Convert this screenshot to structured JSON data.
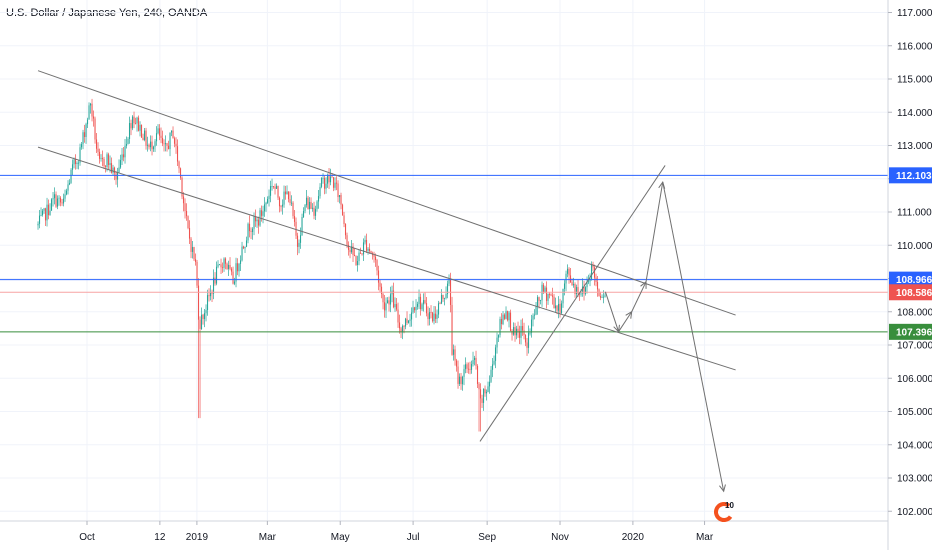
{
  "header": {
    "title": "U.S. Dollar / Japanese Yen, 240, OANDA"
  },
  "colors": {
    "up": "#26a69a",
    "down": "#ef5350",
    "blue_line": "#2962ff",
    "green_line": "#388e3c",
    "red_line": "#f7a3a3",
    "trend": "#707070",
    "tag_blue": "#2962ff",
    "tag_red": "#ef5350",
    "tag_green": "#388e3c",
    "logo": "#f4511e"
  },
  "logo": {
    "text": "10",
    "icon": "tradingview-logo-icon"
  },
  "chart_data": {
    "type": "candlestick",
    "title": "U.S. Dollar / Japanese Yen, 240, OANDA",
    "y_axis": {
      "position": "right",
      "ylim": [
        101.6,
        117.3
      ],
      "ticks": [
        "117.000",
        "116.000",
        "115.000",
        "114.000",
        "113.000",
        "112.000",
        "111.000",
        "110.000",
        "109.000",
        "108.000",
        "107.000",
        "106.000",
        "105.000",
        "104.000",
        "103.000",
        "102.000"
      ]
    },
    "x_axis": {
      "ticks": [
        "Oct",
        "12",
        "2019",
        "Mar",
        "May",
        "Jul",
        "Sep",
        "Nov",
        "2020",
        "Mar"
      ]
    },
    "series_close_path": [
      [
        "2018-08-21",
        110.6
      ],
      [
        "2018-08-28",
        111.0
      ],
      [
        "2018-09-04",
        111.4
      ],
      [
        "2018-09-11",
        111.2
      ],
      [
        "2018-09-18",
        112.2
      ],
      [
        "2018-09-25",
        112.8
      ],
      [
        "2018-10-04",
        114.3
      ],
      [
        "2018-10-11",
        112.4
      ],
      [
        "2018-10-18",
        112.6
      ],
      [
        "2018-10-25",
        112.0
      ],
      [
        "2018-11-01",
        112.9
      ],
      [
        "2018-11-08",
        113.9
      ],
      [
        "2018-11-15",
        113.5
      ],
      [
        "2018-11-22",
        112.9
      ],
      [
        "2018-11-29",
        113.4
      ],
      [
        "2018-12-05",
        112.8
      ],
      [
        "2018-12-12",
        113.4
      ],
      [
        "2018-12-18",
        112.1
      ],
      [
        "2018-12-24",
        110.5
      ],
      [
        "2018-12-31",
        109.4
      ],
      [
        "2019-01-03",
        107.6
      ],
      [
        "2019-01-10",
        108.3
      ],
      [
        "2019-01-17",
        109.1
      ],
      [
        "2019-01-24",
        109.6
      ],
      [
        "2019-01-31",
        108.9
      ],
      [
        "2019-02-07",
        109.8
      ],
      [
        "2019-02-14",
        110.6
      ],
      [
        "2019-02-21",
        110.7
      ],
      [
        "2019-02-28",
        111.3
      ],
      [
        "2019-03-05",
        111.9
      ],
      [
        "2019-03-12",
        111.3
      ],
      [
        "2019-03-19",
        111.6
      ],
      [
        "2019-03-26",
        110.0
      ],
      [
        "2019-04-02",
        111.3
      ],
      [
        "2019-04-09",
        111.1
      ],
      [
        "2019-04-16",
        111.9
      ],
      [
        "2019-04-24",
        112.0
      ],
      [
        "2019-05-01",
        111.4
      ],
      [
        "2019-05-08",
        109.9
      ],
      [
        "2019-05-15",
        109.5
      ],
      [
        "2019-05-22",
        110.1
      ],
      [
        "2019-05-30",
        109.6
      ],
      [
        "2019-06-06",
        108.2
      ],
      [
        "2019-06-13",
        108.5
      ],
      [
        "2019-06-20",
        107.5
      ],
      [
        "2019-06-27",
        107.8
      ],
      [
        "2019-07-04",
        108.4
      ],
      [
        "2019-07-11",
        108.1
      ],
      [
        "2019-07-18",
        107.8
      ],
      [
        "2019-07-25",
        108.4
      ],
      [
        "2019-08-01",
        108.9
      ],
      [
        "2019-08-02",
        107.0
      ],
      [
        "2019-08-08",
        105.9
      ],
      [
        "2019-08-15",
        106.3
      ],
      [
        "2019-08-22",
        106.5
      ],
      [
        "2019-08-26",
        105.2
      ],
      [
        "2019-09-03",
        105.9
      ],
      [
        "2019-09-10",
        107.4
      ],
      [
        "2019-09-17",
        108.1
      ],
      [
        "2019-09-24",
        107.2
      ],
      [
        "2019-10-01",
        107.5
      ],
      [
        "2019-10-03",
        106.9
      ],
      [
        "2019-10-10",
        107.9
      ],
      [
        "2019-10-17",
        108.6
      ],
      [
        "2019-10-24",
        108.5
      ],
      [
        "2019-10-31",
        108.0
      ],
      [
        "2019-11-07",
        109.2
      ],
      [
        "2019-11-14",
        108.7
      ],
      [
        "2019-11-21",
        108.6
      ],
      [
        "2019-11-28",
        109.4
      ],
      [
        "2019-12-03",
        108.6
      ],
      [
        "2019-12-09",
        108.6
      ]
    ],
    "horizontal_lines": [
      {
        "price": 112.103,
        "label": "112.103",
        "color": "blue"
      },
      {
        "price": 108.966,
        "label": "108.966",
        "color": "blue"
      },
      {
        "price": 108.586,
        "label": "108.586",
        "color": "red"
      },
      {
        "price": 107.396,
        "label": "107.396",
        "color": "green"
      }
    ],
    "trend_lines": [
      {
        "from": [
          "2018-08-21",
          115.25
        ],
        "to": [
          "2020-03-27",
          107.9
        ]
      },
      {
        "from": [
          "2018-08-21",
          112.95
        ],
        "to": [
          "2020-03-27",
          106.25
        ]
      },
      {
        "from": [
          "2019-08-26",
          104.1
        ],
        "to": [
          "2020-01-28",
          112.4
        ]
      }
    ],
    "projection_path": [
      [
        "2019-12-09",
        108.6
      ],
      [
        "2019-12-20",
        107.4
      ],
      [
        "2019-12-31",
        108.0
      ],
      [
        "2020-01-12",
        108.9
      ],
      [
        "2020-01-26",
        111.9
      ],
      [
        "2020-03-17",
        102.6
      ]
    ],
    "grid": true,
    "legend": "none"
  }
}
